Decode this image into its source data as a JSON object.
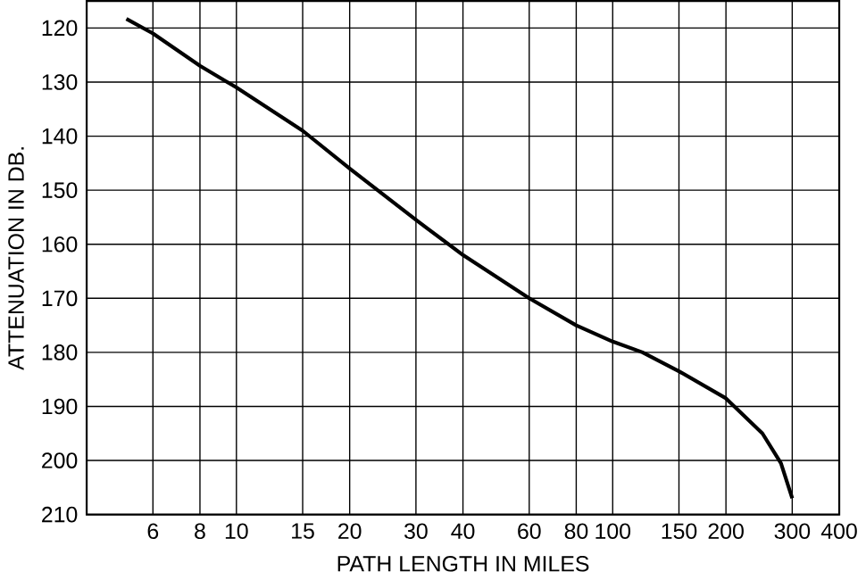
{
  "chart_data": {
    "type": "line",
    "xlabel": "PATH LENGTH IN MILES",
    "ylabel": "ATTENUATION IN DB.",
    "log": "x",
    "grid": true,
    "xlim": [
      4,
      400
    ],
    "ylim": [
      210,
      115
    ],
    "xticks": [
      6,
      8,
      10,
      15,
      20,
      30,
      40,
      60,
      80,
      100,
      150,
      200,
      300,
      400
    ],
    "yticks": [
      120,
      130,
      140,
      150,
      160,
      170,
      180,
      190,
      200,
      210
    ],
    "series": [
      {
        "color": "#000000",
        "x": [
          5.1,
          6,
          8,
          10,
          15,
          20,
          30,
          40,
          60,
          80,
          100,
          120,
          150,
          200,
          250,
          280,
          300
        ],
        "values": [
          118.3,
          121,
          127,
          131,
          139,
          146,
          155.5,
          162,
          170,
          175,
          178,
          180,
          183.5,
          188.5,
          195,
          200.5,
          207
        ]
      }
    ]
  }
}
